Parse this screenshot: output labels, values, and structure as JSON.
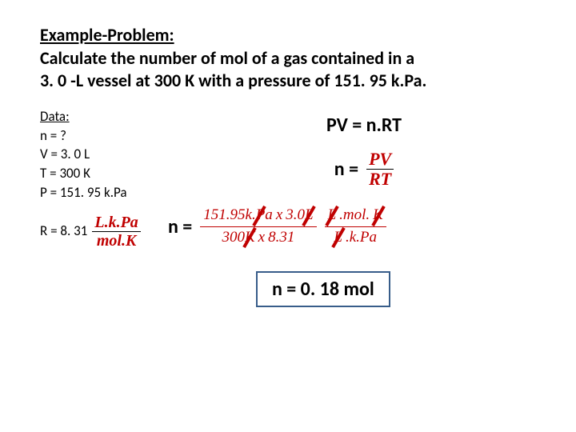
{
  "header": {
    "title": "Example-Problem:",
    "line1": "Calculate the number of mol of a gas contained in a",
    "line2": "3. 0 -L vessel at 300 K with a pressure of 151. 95 k.Pa."
  },
  "data": {
    "title": "Data:",
    "n": "n = ?",
    "v": "V = 3. 0 L",
    "t": "T = 300 K",
    "p": "P = 151. 95 k.Pa"
  },
  "r": {
    "label": "R = 8. 31",
    "num": "L.k.Pa",
    "den": "mol.K"
  },
  "eq": {
    "formula": "PV = n.RT",
    "n_eq": "n =",
    "pv": "PV",
    "rt": "RT"
  },
  "calc": {
    "n_eq": "n =",
    "num_a": "151.95k.Pa",
    "num_b": "3.0L",
    "x": "x",
    "den_a": "300K",
    "den_b": "8.31",
    "unit_num": "L.mol.K",
    "unit_den": "L.k.Pa"
  },
  "result": {
    "text": "n = 0. 18 mol"
  },
  "colors": {
    "red": "#c00000",
    "box_border": "#385d8a",
    "text": "#000000",
    "bg": "#ffffff"
  }
}
